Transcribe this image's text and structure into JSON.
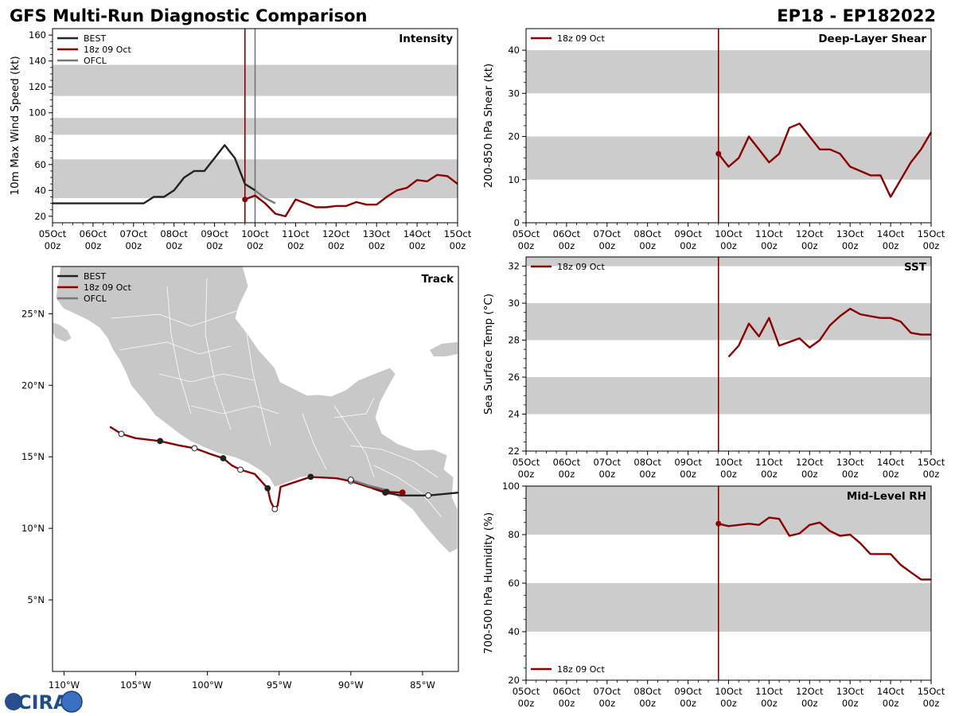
{
  "header": {
    "title_left": "GFS Multi-Run Diagnostic Comparison",
    "title_right": "EP18 - EP182022"
  },
  "colors": {
    "best": "#222222",
    "run": "#8b0000",
    "ofcl": "#777777",
    "band": "#cccccc",
    "land": "#c8c8c8"
  },
  "logo": {
    "text": "CIRA",
    "icon": "globe-icon"
  },
  "time_axis": {
    "ticks": [
      {
        "day": 5,
        "l1": "05Oct",
        "l2": "00z"
      },
      {
        "day": 6,
        "l1": "06Oct",
        "l2": "00z"
      },
      {
        "day": 7,
        "l1": "07Oct",
        "l2": "00z"
      },
      {
        "day": 8,
        "l1": "08Oct",
        "l2": "00z"
      },
      {
        "day": 9,
        "l1": "09Oct",
        "l2": "00z"
      },
      {
        "day": 10,
        "l1": "10Oct",
        "l2": "00z"
      },
      {
        "day": 11,
        "l1": "11Oct",
        "l2": "00z"
      },
      {
        "day": 12,
        "l1": "12Oct",
        "l2": "00z"
      },
      {
        "day": 13,
        "l1": "13Oct",
        "l2": "00z"
      },
      {
        "day": 14,
        "l1": "14Oct",
        "l2": "00z"
      },
      {
        "day": 15,
        "l1": "15Oct",
        "l2": "00z"
      }
    ]
  },
  "chart_data": [
    {
      "id": "intensity",
      "type": "line",
      "title": "Intensity",
      "ylabel": "10m Max Wind Speed (kt)",
      "xlim": [
        5,
        15
      ],
      "ylim": [
        15,
        165
      ],
      "yticks": [
        "20",
        "40",
        "60",
        "80",
        "100",
        "120",
        "140",
        "160"
      ],
      "bands": [
        [
          34,
          64
        ],
        [
          83,
          96
        ],
        [
          113,
          137
        ]
      ],
      "vlines": [
        {
          "x": 9.75,
          "color": "run"
        },
        {
          "x": 10.0,
          "color": "ofcl"
        }
      ],
      "legend": [
        "BEST",
        "18z 09 Oct",
        "OFCL"
      ],
      "series": [
        {
          "name": "BEST",
          "color": "best",
          "x": [
            5.0,
            7.25,
            7.5,
            7.75,
            8.0,
            8.25,
            8.5,
            8.75,
            9.0,
            9.25,
            9.5,
            9.75,
            10.0
          ],
          "y": [
            30,
            30,
            35,
            35,
            40,
            50,
            55,
            55,
            65,
            75,
            65,
            45,
            40
          ]
        },
        {
          "name": "18z 09 Oct",
          "color": "run",
          "startMarker": true,
          "x": [
            9.75,
            10.0,
            10.25,
            10.5,
            10.75,
            11.0,
            11.25,
            11.5,
            11.75,
            12.0,
            12.25,
            12.5,
            12.75,
            13.0,
            13.25,
            13.5,
            13.75,
            14.0,
            14.25,
            14.5,
            14.75,
            15.0
          ],
          "y": [
            33,
            36,
            30,
            22,
            20,
            33,
            30,
            27,
            27,
            28,
            28,
            31,
            29,
            29,
            35,
            40,
            42,
            48,
            47,
            52,
            51,
            45
          ]
        },
        {
          "name": "OFCL",
          "color": "ofcl",
          "x": [
            10.0,
            10.25,
            10.5
          ],
          "y": [
            40,
            34,
            30
          ]
        }
      ]
    },
    {
      "id": "shear",
      "type": "line",
      "title": "Deep-Layer Shear",
      "ylabel": "200-850 hPa Shear (kt)",
      "xlim": [
        5,
        15
      ],
      "ylim": [
        0,
        45
      ],
      "yticks": [
        "0",
        "10",
        "20",
        "30",
        "40"
      ],
      "bands": [
        [
          10,
          20
        ],
        [
          30,
          40
        ]
      ],
      "vlines": [
        {
          "x": 9.75,
          "color": "run"
        }
      ],
      "legend": [
        "18z 09 Oct"
      ],
      "series": [
        {
          "name": "18z 09 Oct",
          "color": "run",
          "startMarker": true,
          "x": [
            9.75,
            10.0,
            10.25,
            10.5,
            10.75,
            11.0,
            11.25,
            11.5,
            11.75,
            12.0,
            12.25,
            12.5,
            12.75,
            13.0,
            13.25,
            13.5,
            13.75,
            14.0,
            14.25,
            14.5,
            14.75,
            15.0
          ],
          "y": [
            16,
            13,
            15,
            20,
            17,
            14,
            16,
            22,
            23,
            20,
            17,
            17,
            16,
            13,
            12,
            11,
            11,
            6,
            10,
            14,
            17,
            21
          ]
        }
      ]
    },
    {
      "id": "sst",
      "type": "line",
      "title": "SST",
      "ylabel": "Sea Surface Temp (°C)",
      "xlim": [
        5,
        15
      ],
      "ylim": [
        22,
        32.5
      ],
      "yticks": [
        "22",
        "24",
        "26",
        "28",
        "30",
        "32"
      ],
      "bands": [
        [
          24,
          26
        ],
        [
          28,
          30
        ],
        [
          32,
          32.5
        ]
      ],
      "vlines": [
        {
          "x": 9.75,
          "color": "run"
        }
      ],
      "legend": [
        "18z 09 Oct"
      ],
      "series": [
        {
          "name": "18z 09 Oct",
          "color": "run",
          "x": [
            10.0,
            10.25,
            10.5,
            10.75,
            11.0,
            11.25,
            11.5,
            11.75,
            12.0,
            12.25,
            12.5,
            12.75,
            13.0,
            13.25,
            13.5,
            13.75,
            14.0,
            14.25,
            14.5,
            14.75,
            15.0
          ],
          "y": [
            27.1,
            27.7,
            28.9,
            28.2,
            29.2,
            27.7,
            27.9,
            28.1,
            27.6,
            28.0,
            28.8,
            29.3,
            29.7,
            29.4,
            29.3,
            29.2,
            29.2,
            29.0,
            28.4,
            28.3,
            28.3
          ]
        }
      ]
    },
    {
      "id": "rh",
      "type": "line",
      "title": "Mid-Level RH",
      "ylabel": "700-500 hPa Humidity (%)",
      "xlim": [
        5,
        15
      ],
      "ylim": [
        20,
        100
      ],
      "yticks": [
        "20",
        "40",
        "60",
        "80",
        "100"
      ],
      "bands": [
        [
          40,
          60
        ],
        [
          80,
          100
        ]
      ],
      "vlines": [
        {
          "x": 9.75,
          "color": "run"
        }
      ],
      "legend": [
        "18z 09 Oct"
      ],
      "legend_pos": "bottom-left",
      "series": [
        {
          "name": "18z 09 Oct",
          "color": "run",
          "startMarker": true,
          "x": [
            9.75,
            10.0,
            10.25,
            10.5,
            10.75,
            11.0,
            11.25,
            11.5,
            11.75,
            12.0,
            12.25,
            12.5,
            12.75,
            13.0,
            13.25,
            13.5,
            13.75,
            14.0,
            14.25,
            14.5,
            14.75,
            15.0
          ],
          "y": [
            84.5,
            83.5,
            84,
            84.5,
            84,
            87,
            86.5,
            79.5,
            80.5,
            84,
            85,
            81.5,
            79.5,
            80,
            76.5,
            72,
            72,
            72,
            67.5,
            64.5,
            61.5,
            61.5
          ]
        }
      ]
    },
    {
      "id": "track",
      "type": "scatter",
      "title": "Track",
      "xlim": [
        -110.8,
        -82.5
      ],
      "ylim": [
        0,
        28.3
      ],
      "xticks": [
        {
          "v": -110,
          "l": "110°W"
        },
        {
          "v": -105,
          "l": "105°W"
        },
        {
          "v": -100,
          "l": "100°W"
        },
        {
          "v": -95,
          "l": "95°W"
        },
        {
          "v": -90,
          "l": "90°W"
        },
        {
          "v": -85,
          "l": "85°W"
        }
      ],
      "yticks": [
        {
          "v": 5,
          "l": "5°N"
        },
        {
          "v": 10,
          "l": "10°N"
        },
        {
          "v": 15,
          "l": "15°N"
        },
        {
          "v": 20,
          "l": "20°N"
        },
        {
          "v": 25,
          "l": "25°N"
        }
      ],
      "legend": [
        "BEST",
        "18z 09 Oct",
        "OFCL"
      ],
      "series": [
        {
          "name": "BEST",
          "color": "best",
          "lon": [
            -82.5,
            -84.6,
            -86.5,
            -87.6,
            -88.5
          ],
          "lat": [
            12.5,
            12.3,
            12.3,
            12.5,
            12.8
          ],
          "markers": [
            {
              "i": 1,
              "fill": "white"
            },
            {
              "i": 3,
              "fill": "color"
            }
          ]
        },
        {
          "name": "18z 09 Oct",
          "color": "run",
          "lon": [
            -106.8,
            -106.0,
            -105.0,
            -103.3,
            -102.0,
            -100.9,
            -99.8,
            -98.9,
            -98.3,
            -97.7,
            -96.7,
            -95.8,
            -95.6,
            -95.45,
            -95.3,
            -95.1,
            -94.9,
            -92.8,
            -91.0,
            -90.0,
            -88.8,
            -87.5,
            -86.4
          ],
          "lat": [
            17.1,
            16.6,
            16.3,
            16.1,
            15.8,
            15.6,
            15.2,
            14.9,
            14.4,
            14.1,
            13.8,
            12.8,
            11.9,
            11.6,
            11.35,
            11.6,
            12.9,
            13.6,
            13.5,
            13.3,
            12.9,
            12.55,
            12.5
          ],
          "markers": [
            {
              "i": 1,
              "fill": "white"
            },
            {
              "i": 3,
              "fill": "best"
            },
            {
              "i": 5,
              "fill": "white"
            },
            {
              "i": 7,
              "fill": "best"
            },
            {
              "i": 9,
              "fill": "white"
            },
            {
              "i": 11,
              "fill": "best"
            },
            {
              "i": 14,
              "fill": "white"
            },
            {
              "i": 17,
              "fill": "best"
            },
            {
              "i": 19,
              "fill": "white"
            },
            {
              "i": 21,
              "fill": "best"
            },
            {
              "i": 22,
              "fill": "run"
            }
          ]
        },
        {
          "name": "OFCL",
          "color": "ofcl",
          "lon": [
            -87.6,
            -88.8,
            -90.0
          ],
          "lat": [
            12.7,
            13.0,
            13.4
          ],
          "markers": [
            {
              "i": 2,
              "fill": "white"
            }
          ]
        }
      ]
    }
  ]
}
